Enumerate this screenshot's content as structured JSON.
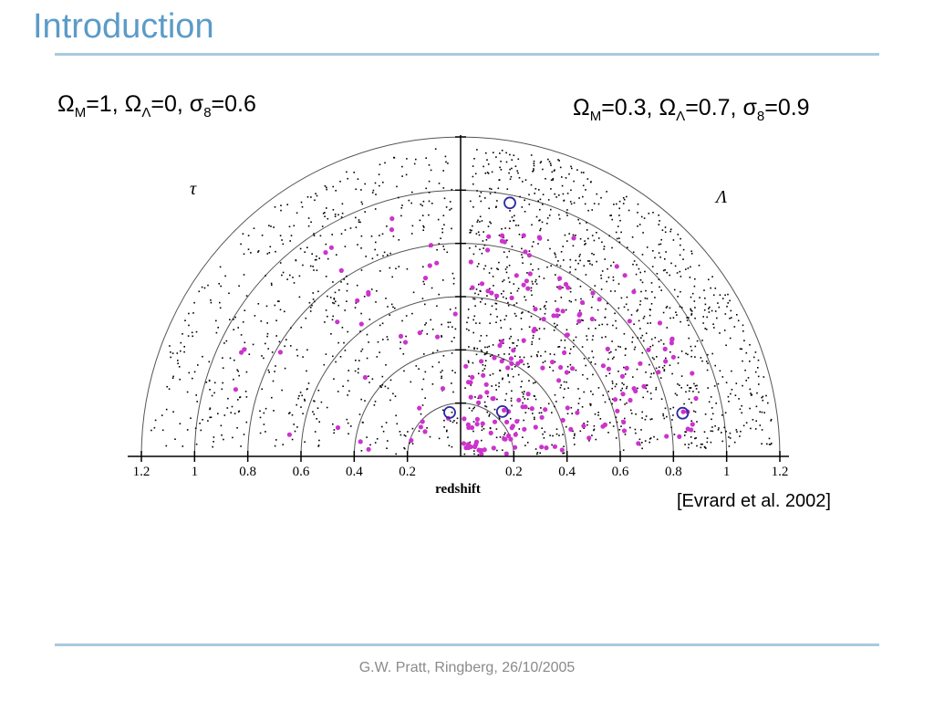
{
  "slide": {
    "title": "Introduction",
    "left_model": {
      "om_sym": "Ω",
      "om_sub": "M",
      "om_val": "=1, ",
      "ol_sym": "Ω",
      "ol_sub": "Λ",
      "ol_val": "=0, ",
      "s_sym": "σ",
      "s_sub": "8",
      "s_val": "=0.6"
    },
    "right_model": {
      "om_sym": "Ω",
      "om_sub": "M",
      "om_val": "=0.3, ",
      "ol_sym": "Ω",
      "ol_sub": "Λ",
      "ol_val": "=0.7, ",
      "s_sym": "σ",
      "s_sub": "8",
      "s_val": "=0.9"
    },
    "citation": "[Evrard et al. 2002]",
    "footer": "G.W. Pratt, Ringberg, 26/10/2005"
  },
  "chart_data": {
    "type": "scatter",
    "xlabel": "redshift",
    "left_label": "τ",
    "right_label": "Λ",
    "left_ticks": [
      "1.2",
      "1",
      "0.8",
      "0.6",
      "0.4",
      "0.2"
    ],
    "right_ticks": [
      "0.2",
      "0.4",
      "0.6",
      "0.8",
      "1",
      "1.2"
    ],
    "xlim": [
      0,
      1.2
    ],
    "ring_redshifts": [
      0.2,
      0.4,
      0.6,
      0.8,
      1.0,
      1.2
    ],
    "colors": {
      "points": "#000000",
      "clusters": "#cc33cc",
      "circled": "#2a2aa0"
    },
    "circled_clusters": [
      {
        "z": 0.97,
        "angle_deg": 79
      },
      {
        "z": 0.23,
        "angle_deg": 47
      },
      {
        "z": 0.85,
        "angle_deg": 11
      },
      {
        "z": 0.17,
        "angle_deg": 104
      }
    ]
  }
}
